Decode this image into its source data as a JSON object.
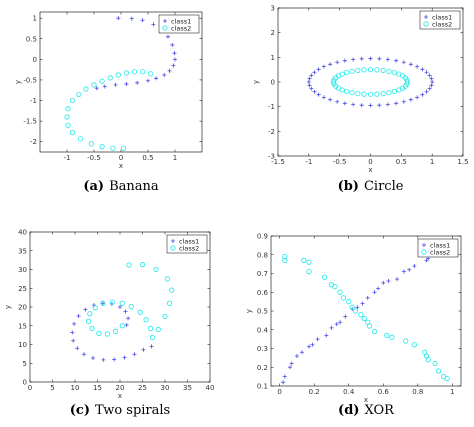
{
  "colors": {
    "class1": "#4a4ae8",
    "class2": "#22e8e8",
    "axis": "#000000",
    "grid_text": "#333333"
  },
  "chart_data": [
    {
      "type": "scatter",
      "caption_tag": "(a)",
      "caption_text": "Banana",
      "xlabel": "x",
      "ylabel": "y",
      "xlim": [
        -1.5,
        1.5
      ],
      "ylim": [
        -2.25,
        1.15
      ],
      "xticks": [
        -1,
        -0.5,
        0,
        0.5,
        1
      ],
      "xtick_labels": [
        "-1",
        "-0.5",
        "0",
        "0.5",
        "1"
      ],
      "yticks": [
        -2,
        -1.5,
        -1,
        -0.5,
        0,
        0.5,
        1
      ],
      "ytick_labels": [
        "-2",
        "-1.5",
        "-1",
        "-0.5",
        "0",
        "0.5",
        "1"
      ],
      "legend": "top-right",
      "grid": false,
      "series": [
        {
          "name": "class1",
          "marker": "plus",
          "points": [
            [
              -0.05,
              1.0
            ],
            [
              0.2,
              0.99
            ],
            [
              0.4,
              0.95
            ],
            [
              0.6,
              0.85
            ],
            [
              0.75,
              0.72
            ],
            [
              0.87,
              0.55
            ],
            [
              0.95,
              0.35
            ],
            [
              0.99,
              0.15
            ],
            [
              1.0,
              0.0
            ],
            [
              0.97,
              -0.15
            ],
            [
              0.9,
              -0.28
            ],
            [
              0.8,
              -0.38
            ],
            [
              0.65,
              -0.46
            ],
            [
              0.5,
              -0.52
            ],
            [
              0.3,
              -0.57
            ],
            [
              0.1,
              -0.6
            ],
            [
              -0.1,
              -0.62
            ],
            [
              -0.3,
              -0.66
            ],
            [
              -0.45,
              -0.7
            ]
          ]
        },
        {
          "name": "class2",
          "marker": "circle",
          "points": [
            [
              0.55,
              -0.35
            ],
            [
              0.4,
              -0.3
            ],
            [
              0.25,
              -0.3
            ],
            [
              0.1,
              -0.33
            ],
            [
              -0.05,
              -0.38
            ],
            [
              -0.2,
              -0.45
            ],
            [
              -0.35,
              -0.53
            ],
            [
              -0.5,
              -0.62
            ],
            [
              -0.65,
              -0.72
            ],
            [
              -0.78,
              -0.85
            ],
            [
              -0.9,
              -1.0
            ],
            [
              -0.98,
              -1.2
            ],
            [
              -1.0,
              -1.4
            ],
            [
              -0.98,
              -1.6
            ],
            [
              -0.9,
              -1.78
            ],
            [
              -0.75,
              -1.93
            ],
            [
              -0.55,
              -2.05
            ],
            [
              -0.35,
              -2.12
            ],
            [
              -0.15,
              -2.16
            ],
            [
              0.05,
              -2.16
            ]
          ]
        }
      ]
    },
    {
      "type": "scatter",
      "caption_tag": "(b)",
      "caption_text": "Circle",
      "xlabel": "x",
      "ylabel": "y",
      "xlim": [
        -1.5,
        1.5
      ],
      "ylim": [
        -3,
        3
      ],
      "xticks": [
        -1.5,
        -1,
        -0.5,
        0,
        0.5,
        1,
        1.5
      ],
      "xtick_labels": [
        "-1.5",
        "-1",
        "-0.5",
        "0",
        "0.5",
        "1",
        "1.5"
      ],
      "yticks": [
        -3,
        -2,
        -1,
        0,
        1,
        2,
        3
      ],
      "ytick_labels": [
        "-3",
        "-2",
        "-1",
        "0",
        "1",
        "2",
        "3"
      ],
      "legend": "top-right",
      "grid": false,
      "series": [
        {
          "name": "class1",
          "marker": "plus",
          "ellipse": {
            "cx": 0,
            "cy": 0,
            "rx": 1.0,
            "ry": 0.95,
            "count": 44
          }
        },
        {
          "name": "class2",
          "marker": "circle",
          "ellipse": {
            "cx": 0,
            "cy": 0,
            "rx": 0.6,
            "ry": 0.5,
            "count": 36
          }
        }
      ]
    },
    {
      "type": "scatter",
      "caption_tag": "(c)",
      "caption_text": "Two spirals",
      "xlabel": "x",
      "ylabel": "y",
      "xlim": [
        0,
        40
      ],
      "ylim": [
        0,
        40
      ],
      "xticks": [
        0,
        5,
        10,
        15,
        20,
        25,
        30,
        35,
        40
      ],
      "xtick_labels": [
        "0",
        "5",
        "10",
        "15",
        "20",
        "25",
        "30",
        "35",
        "40"
      ],
      "yticks": [
        0,
        5,
        10,
        15,
        20,
        25,
        30,
        35,
        40
      ],
      "ytick_labels": [
        "0",
        "5",
        "10",
        "15",
        "20",
        "25",
        "30",
        "35",
        "40"
      ],
      "legend": "top-right",
      "grid": false,
      "series": [
        {
          "name": "class1",
          "marker": "plus",
          "points": [
            [
              21.5,
              15.2
            ],
            [
              21.8,
              17.0
            ],
            [
              21.2,
              18.8
            ],
            [
              20.0,
              20.0
            ],
            [
              18.2,
              20.8
            ],
            [
              16.2,
              21.0
            ],
            [
              14.2,
              20.5
            ],
            [
              12.3,
              19.3
            ],
            [
              10.8,
              17.6
            ],
            [
              9.8,
              15.5
            ],
            [
              9.4,
              13.2
            ],
            [
              9.6,
              11.0
            ],
            [
              10.5,
              9.0
            ],
            [
              12.0,
              7.4
            ],
            [
              14.0,
              6.4
            ],
            [
              16.3,
              5.9
            ],
            [
              18.7,
              6.0
            ],
            [
              21.0,
              6.5
            ],
            [
              23.2,
              7.4
            ],
            [
              25.2,
              8.6
            ],
            [
              27.0,
              9.5
            ]
          ]
        },
        {
          "name": "class2",
          "marker": "circle",
          "points": [
            [
              20.5,
              15.0
            ],
            [
              19.0,
              13.5
            ],
            [
              17.2,
              12.8
            ],
            [
              15.3,
              13.0
            ],
            [
              13.8,
              14.3
            ],
            [
              13.0,
              16.2
            ],
            [
              13.3,
              18.2
            ],
            [
              14.5,
              19.8
            ],
            [
              16.2,
              21.0
            ],
            [
              18.3,
              21.3
            ],
            [
              20.5,
              21.0
            ],
            [
              22.5,
              20.1
            ],
            [
              24.5,
              18.6
            ],
            [
              25.8,
              16.6
            ],
            [
              26.8,
              14.3
            ],
            [
              27.2,
              11.9
            ],
            [
              28.5,
              14.0
            ],
            [
              30.0,
              17.5
            ],
            [
              31.0,
              21.0
            ],
            [
              31.5,
              24.5
            ],
            [
              30.5,
              27.5
            ],
            [
              28.0,
              30.0
            ],
            [
              25.0,
              31.3
            ],
            [
              22.0,
              31.2
            ]
          ]
        }
      ]
    },
    {
      "type": "scatter",
      "caption_tag": "(d)",
      "caption_text": "XOR",
      "xlabel": "x",
      "ylabel": "y",
      "xlim": [
        -0.05,
        1.05
      ],
      "ylim": [
        0.1,
        0.9
      ],
      "xticks": [
        0,
        0.2,
        0.4,
        0.6,
        0.8,
        1
      ],
      "xtick_labels": [
        "0",
        "0.2",
        "0.4",
        "0.6",
        "0.8",
        "1"
      ],
      "yticks": [
        0.1,
        0.2,
        0.3,
        0.4,
        0.5,
        0.6,
        0.7,
        0.8,
        0.9
      ],
      "ytick_labels": [
        "0.1",
        "0.2",
        "0.3",
        "0.4",
        "0.5",
        "0.6",
        "0.7",
        "0.8",
        "0.9"
      ],
      "legend": "top-right",
      "grid": false,
      "series": [
        {
          "name": "class1",
          "marker": "plus",
          "points": [
            [
              0.02,
              0.12
            ],
            [
              0.03,
              0.15
            ],
            [
              0.06,
              0.2
            ],
            [
              0.07,
              0.22
            ],
            [
              0.1,
              0.26
            ],
            [
              0.13,
              0.28
            ],
            [
              0.17,
              0.31
            ],
            [
              0.19,
              0.32
            ],
            [
              0.22,
              0.35
            ],
            [
              0.27,
              0.37
            ],
            [
              0.3,
              0.41
            ],
            [
              0.33,
              0.43
            ],
            [
              0.35,
              0.44
            ],
            [
              0.38,
              0.47
            ],
            [
              0.42,
              0.51
            ],
            [
              0.45,
              0.52
            ],
            [
              0.48,
              0.54
            ],
            [
              0.51,
              0.57
            ],
            [
              0.55,
              0.6
            ],
            [
              0.57,
              0.62
            ],
            [
              0.6,
              0.65
            ],
            [
              0.63,
              0.66
            ],
            [
              0.68,
              0.67
            ],
            [
              0.72,
              0.71
            ],
            [
              0.75,
              0.72
            ],
            [
              0.78,
              0.74
            ],
            [
              0.85,
              0.77
            ],
            [
              0.86,
              0.78
            ],
            [
              0.92,
              0.8
            ],
            [
              0.95,
              0.8
            ]
          ]
        },
        {
          "name": "class2",
          "marker": "circle",
          "points": [
            [
              0.03,
              0.79
            ],
            [
              0.03,
              0.77
            ],
            [
              0.14,
              0.77
            ],
            [
              0.17,
              0.76
            ],
            [
              0.17,
              0.71
            ],
            [
              0.26,
              0.68
            ],
            [
              0.3,
              0.64
            ],
            [
              0.32,
              0.63
            ],
            [
              0.35,
              0.6
            ],
            [
              0.37,
              0.57
            ],
            [
              0.4,
              0.55
            ],
            [
              0.42,
              0.52
            ],
            [
              0.44,
              0.5
            ],
            [
              0.47,
              0.48
            ],
            [
              0.49,
              0.46
            ],
            [
              0.51,
              0.44
            ],
            [
              0.52,
              0.42
            ],
            [
              0.55,
              0.39
            ],
            [
              0.62,
              0.37
            ],
            [
              0.65,
              0.36
            ],
            [
              0.73,
              0.34
            ],
            [
              0.78,
              0.32
            ],
            [
              0.84,
              0.28
            ],
            [
              0.85,
              0.26
            ],
            [
              0.86,
              0.24
            ],
            [
              0.9,
              0.22
            ],
            [
              0.92,
              0.18
            ],
            [
              0.95,
              0.15
            ],
            [
              0.97,
              0.14
            ]
          ]
        }
      ]
    }
  ]
}
